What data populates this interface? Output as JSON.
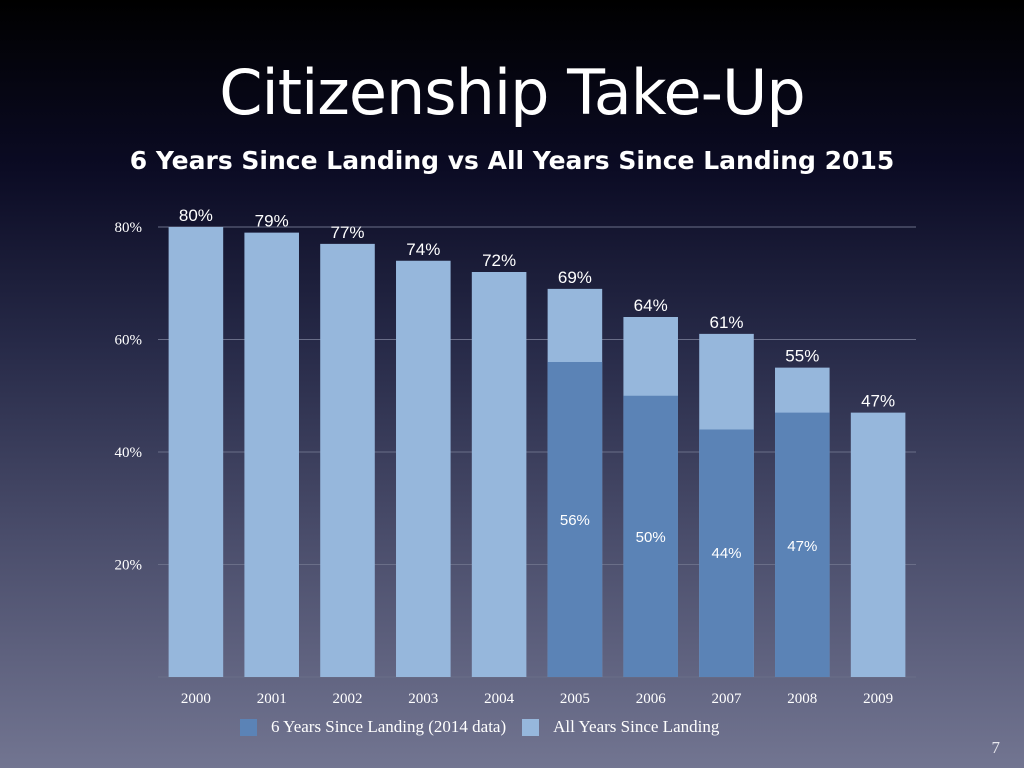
{
  "slide": {
    "title": "Citizenship Take-Up",
    "subtitle": "6 Years Since Landing vs All Years Since Landing 2015",
    "page_number": "7"
  },
  "colors": {
    "six_years": "#5b83b6",
    "all_years": "#96b7dc",
    "gridline": "#6a6e88"
  },
  "chart_data": {
    "type": "bar",
    "categories": [
      "2000",
      "2001",
      "2002",
      "2003",
      "2004",
      "2005",
      "2006",
      "2007",
      "2008",
      "2009"
    ],
    "series": [
      {
        "name": "6 Years Since Landing (2014 data)",
        "values": [
          null,
          null,
          null,
          null,
          null,
          56,
          50,
          44,
          47,
          null
        ],
        "labels": [
          "",
          "",
          "",
          "",
          "",
          "56%",
          "50%",
          "44%",
          "47%",
          ""
        ]
      },
      {
        "name": "All Years Since Landing",
        "values": [
          80,
          79,
          77,
          74,
          72,
          69,
          64,
          61,
          55,
          47
        ],
        "labels": [
          "80%",
          "79%",
          "77%",
          "74%",
          "72%",
          "69%",
          "64%",
          "61%",
          "55%",
          "47%"
        ]
      }
    ],
    "ylim": [
      0,
      80
    ],
    "yticks": [
      20,
      40,
      60,
      80
    ],
    "ytick_labels": [
      "20%",
      "40%",
      "60%",
      "80%"
    ],
    "grid": true,
    "legend_position": "bottom"
  }
}
